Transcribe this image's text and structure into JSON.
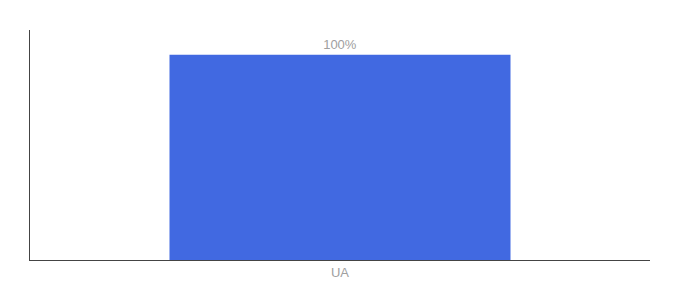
{
  "chart_data": {
    "type": "bar",
    "categories": [
      "UA"
    ],
    "values": [
      100
    ],
    "value_labels": [
      "100%"
    ],
    "color": "#4169E1",
    "ylim": [
      0,
      112
    ],
    "grid": false,
    "data_labels": true,
    "tick_labels": "x"
  }
}
